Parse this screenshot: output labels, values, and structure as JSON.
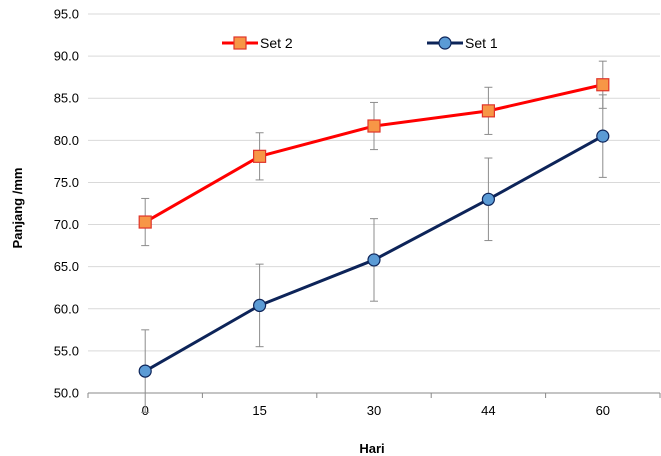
{
  "chart_data": {
    "type": "line",
    "categories": [
      "0",
      "15",
      "30",
      "44",
      "60"
    ],
    "series": [
      {
        "name": "Set 2",
        "values": [
          70.3,
          78.1,
          81.7,
          83.5,
          86.6
        ],
        "error": [
          2.8,
          2.8,
          2.8,
          2.8,
          2.8
        ],
        "color": "#ff0000",
        "marker": "square",
        "marker_fill": "#f79646",
        "marker_stroke": "#e0342a"
      },
      {
        "name": "Set 1",
        "values": [
          52.6,
          60.4,
          65.8,
          73.0,
          80.5
        ],
        "error": [
          4.9,
          4.9,
          4.9,
          4.9,
          4.9
        ],
        "color": "#0d2459",
        "marker": "circle",
        "marker_fill": "#5b9bd5",
        "marker_stroke": "#0d2459"
      }
    ],
    "xlabel": "Hari",
    "ylabel": "Panjang /mm",
    "ylim": [
      50,
      95
    ],
    "yticks": [
      "50.0",
      "55.0",
      "60.0",
      "65.0",
      "70.0",
      "75.0",
      "80.0",
      "85.0",
      "90.0",
      "95.0"
    ],
    "grid": true,
    "gridline_color": "#d9d9d9",
    "legend_position": "top"
  }
}
